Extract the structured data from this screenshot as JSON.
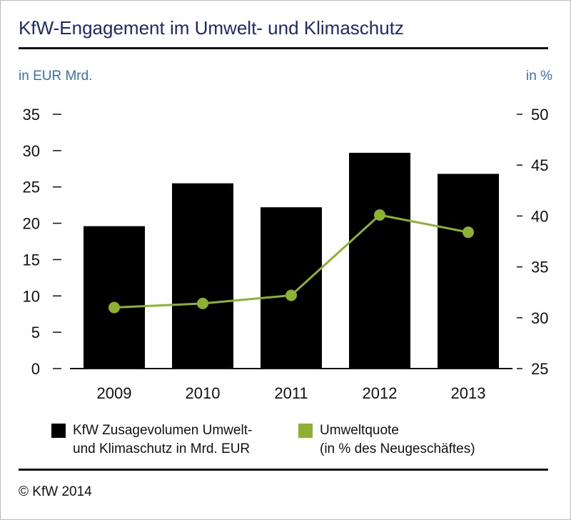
{
  "title": "KfW-Engagement im Umwelt- und Klimaschutz",
  "axis_left_unit": "in EUR Mrd.",
  "axis_right_unit": "in %",
  "legend": {
    "bar": {
      "line1": "KfW Zusagevolumen Umwelt-",
      "line2": "und Klimaschutz in Mrd. EUR"
    },
    "line": {
      "line1": "Umweltquote",
      "line2": "(in % des Neugeschäftes)"
    }
  },
  "copyright": "© KfW 2014",
  "colors": {
    "bar": "#000000",
    "line": "#8db131",
    "title": "#1d2b66",
    "unit": "#3a6fb0"
  },
  "chart_data": {
    "type": "bar+line",
    "title": "KfW-Engagement im Umwelt- und Klimaschutz",
    "categories": [
      "2009",
      "2010",
      "2011",
      "2012",
      "2013"
    ],
    "series": [
      {
        "name": "KfW Zusagevolumen Umwelt- und Klimaschutz in Mrd. EUR",
        "type": "bar",
        "axis": "left",
        "values": [
          19.6,
          25.5,
          22.2,
          29.7,
          26.8
        ]
      },
      {
        "name": "Umweltquote (in % des Neugeschäftes)",
        "type": "line",
        "axis": "right",
        "values": [
          31.0,
          31.4,
          32.2,
          40.1,
          38.4
        ]
      }
    ],
    "left_axis": {
      "label": "in EUR Mrd.",
      "ylim": [
        0,
        35
      ],
      "ticks": [
        0,
        5,
        10,
        15,
        20,
        25,
        30,
        35
      ]
    },
    "right_axis": {
      "label": "in %",
      "ylim": [
        25,
        50
      ],
      "ticks": [
        25,
        30,
        35,
        40,
        45,
        50
      ]
    },
    "grid": false,
    "legend_position": "bottom"
  }
}
